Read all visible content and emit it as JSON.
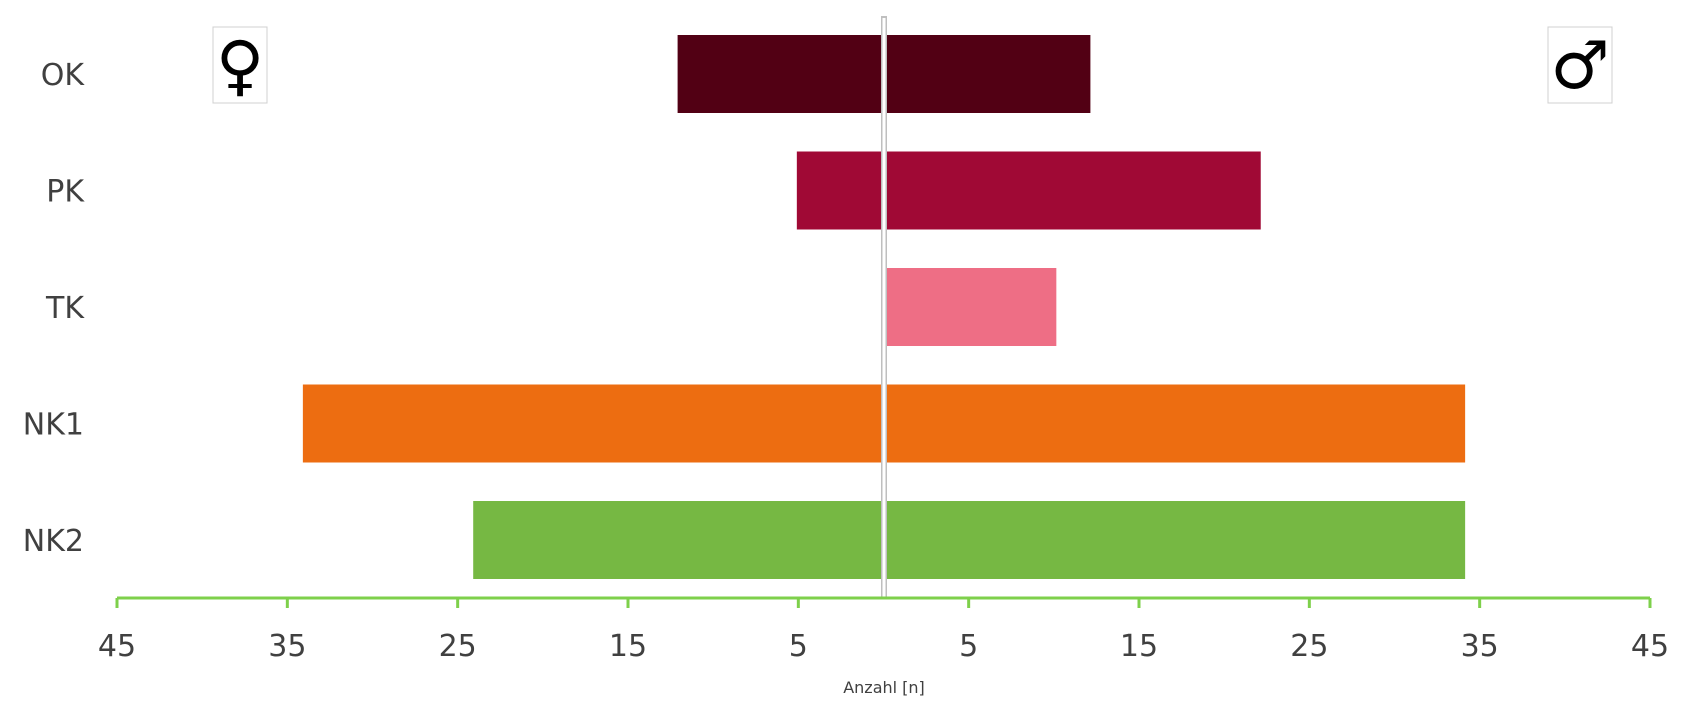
{
  "chart_data": {
    "type": "bar",
    "orientation": "horizontal",
    "categories": [
      "OK",
      "PK",
      "TK",
      "NK1",
      "NK2"
    ],
    "series": [
      {
        "side": "left",
        "values": [
          12,
          5,
          0,
          34,
          24
        ]
      },
      {
        "side": "right",
        "values": [
          12,
          22,
          10,
          34,
          34
        ]
      }
    ],
    "colors": [
      "#520014",
      "#A00935",
      "#EE6E85",
      "#ED6D11",
      "#76B843"
    ],
    "axis_color": "#7ED04B",
    "center_line_color": "#BFBFBF",
    "tick_labels": [
      "45",
      "35",
      "25",
      "15",
      "5",
      "5",
      "15",
      "25",
      "35",
      "45"
    ],
    "xlabel": "Anzahl [n]",
    "xlim": [
      -45,
      45
    ],
    "grid": false,
    "legend": "none",
    "symbols": {
      "left": "♀",
      "right": "♂"
    }
  }
}
